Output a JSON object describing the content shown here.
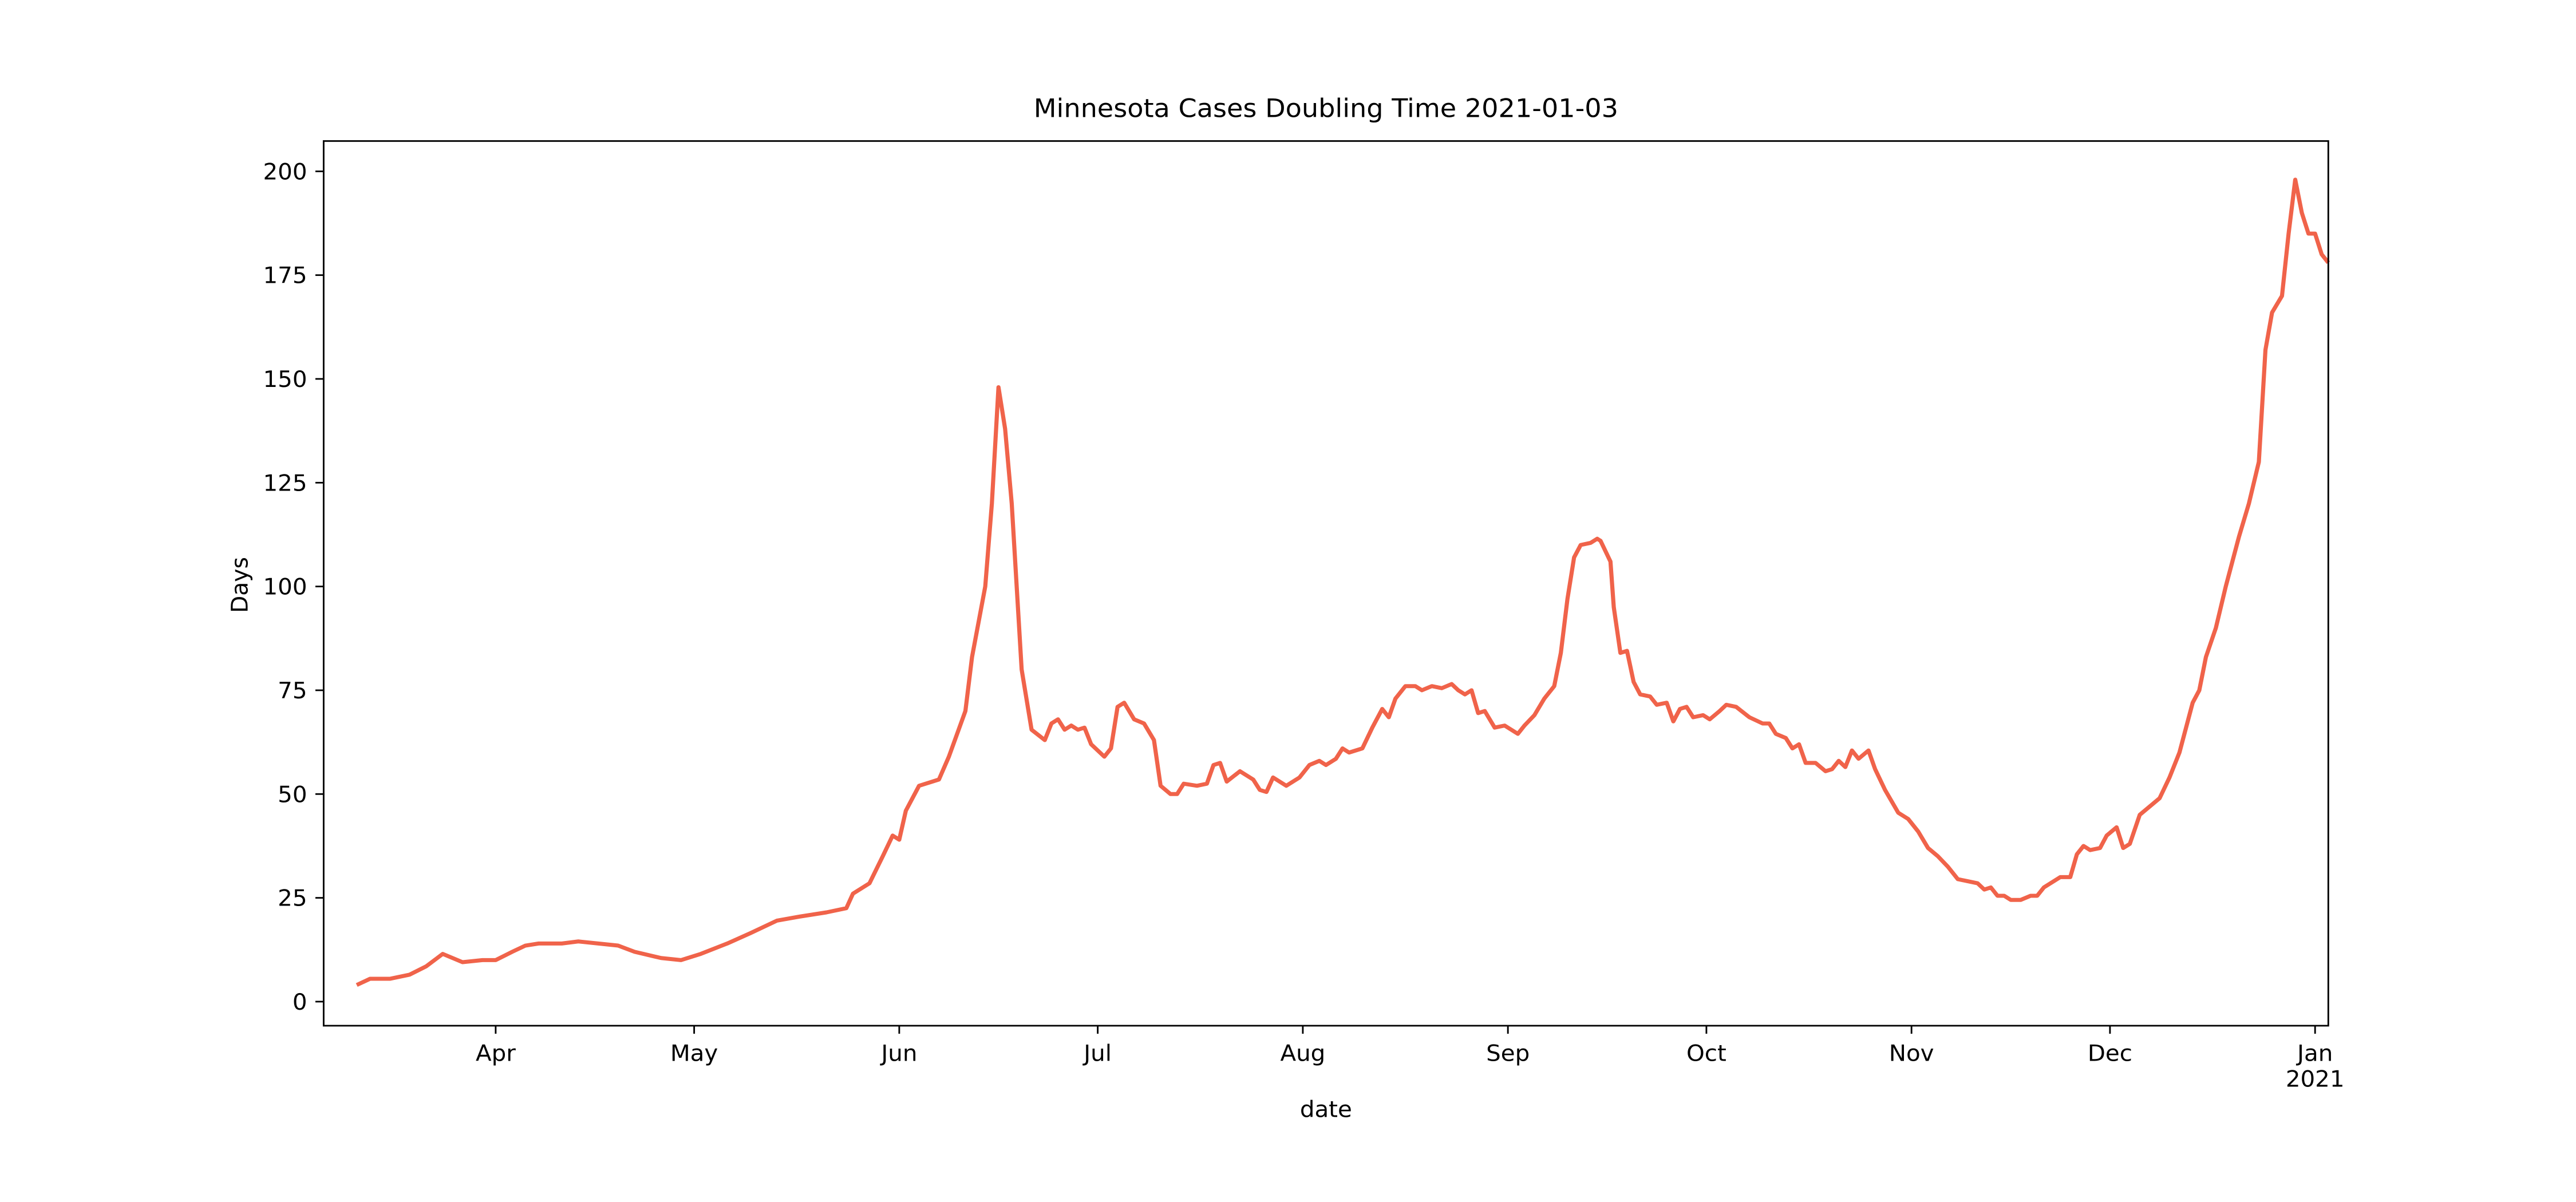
{
  "chart_data": {
    "type": "line",
    "title": "Minnesota Cases Doubling Time 2021-01-03",
    "xlabel": "date",
    "ylabel": "Days",
    "color": "#f0634a",
    "grid": false,
    "xlim": [
      0,
      303
    ],
    "ylim": [
      -5.8,
      207.3
    ],
    "xticks": [
      {
        "value": 26,
        "label": "Apr"
      },
      {
        "value": 56,
        "label": "May"
      },
      {
        "value": 87,
        "label": "Jun"
      },
      {
        "value": 117,
        "label": "Jul"
      },
      {
        "value": 148,
        "label": "Aug"
      },
      {
        "value": 179,
        "label": "Sep"
      },
      {
        "value": 209,
        "label": "Oct"
      },
      {
        "value": 240,
        "label": "Nov"
      },
      {
        "value": 270,
        "label": "Dec"
      },
      {
        "value": 301,
        "label": "Jan\n2021"
      }
    ],
    "yticks": [
      0,
      25,
      50,
      75,
      100,
      125,
      150,
      175,
      200
    ],
    "x": [
      5,
      7,
      10,
      13,
      15.5,
      18,
      21,
      24,
      26,
      28.5,
      30.5,
      32.5,
      36,
      38.5,
      41.5,
      44.5,
      47,
      51,
      54,
      57,
      61,
      64.5,
      68.5,
      72,
      76,
      79,
      80,
      82.5,
      84.5,
      86,
      87,
      88,
      90,
      93,
      94.5,
      97,
      98,
      100,
      101,
      102,
      103,
      104,
      105.5,
      107,
      109,
      110,
      111,
      112,
      113,
      114,
      115,
      116,
      118,
      119,
      120,
      121,
      122.5,
      124,
      125.5,
      126.5,
      128,
      129,
      130,
      132,
      133.5,
      134.5,
      135.5,
      136.5,
      138.5,
      140.5,
      141.5,
      142.5,
      143.5,
      145.5,
      147.5,
      149,
      150.5,
      151.5,
      153,
      154,
      155,
      157,
      158.5,
      160,
      161,
      162,
      163.5,
      165,
      166,
      167.5,
      169,
      170.5,
      171.5,
      172.5,
      173.5,
      174.5,
      175.5,
      177,
      178.5,
      179.5,
      180.5,
      181.5,
      183,
      184.5,
      186,
      187,
      188,
      189,
      190,
      191.5,
      192.5,
      193,
      194.5,
      195,
      196,
      197,
      198,
      199,
      200.5,
      201.5,
      203,
      204,
      205,
      206,
      207,
      208.5,
      209.5,
      211,
      212,
      213.5,
      215.5,
      217.5,
      218.5,
      219.5,
      221,
      222,
      223,
      224,
      225.5,
      227,
      228,
      229,
      230,
      231,
      232,
      233.5,
      234.5,
      236,
      238,
      239.5,
      241,
      242.5,
      244,
      245.5,
      247,
      248.5,
      250,
      251,
      252,
      253,
      254,
      255,
      256.5,
      258,
      259,
      260,
      261.5,
      262.5,
      264,
      265,
      266,
      267,
      268.5,
      269.5,
      271,
      272,
      273,
      274.5,
      276,
      277.5,
      279,
      280.5,
      281.5,
      282.5,
      283.5,
      284.5,
      286,
      287.5,
      288.5,
      289.5,
      291,
      292.5,
      293.5,
      294.5,
      296,
      297,
      298,
      299,
      300,
      301,
      302,
      303
    ],
    "values": [
      4,
      5.5,
      5.5,
      6.5,
      8.5,
      11.5,
      9.5,
      10,
      10,
      12,
      13.5,
      14,
      14,
      14.5,
      14,
      13.5,
      12,
      10.5,
      10,
      11.5,
      14,
      16.5,
      19.5,
      20.5,
      21.5,
      22.5,
      26,
      28.5,
      35,
      40,
      39,
      46,
      52,
      53.5,
      59,
      70,
      83,
      100,
      120,
      148,
      138,
      120,
      80,
      65.5,
      63,
      67,
      68,
      65.5,
      66.5,
      65.5,
      66,
      62,
      59,
      61,
      71,
      72,
      68,
      67,
      63,
      52,
      50,
      50,
      52.5,
      52,
      52.5,
      57,
      57.5,
      53,
      55.5,
      53.5,
      51,
      50.5,
      54,
      52,
      54,
      57,
      58,
      57,
      58.5,
      61,
      60,
      61,
      66,
      70.5,
      68.5,
      73,
      76,
      76,
      75,
      76,
      75.5,
      76.5,
      75,
      74,
      75,
      69.5,
      70,
      66,
      66.5,
      65.5,
      64.5,
      66.5,
      69,
      73,
      76,
      84,
      97,
      107,
      110,
      110.5,
      111.5,
      111,
      106,
      95,
      84,
      84.5,
      77,
      74,
      73.5,
      71.5,
      72,
      67.5,
      70.5,
      71,
      68.5,
      69,
      68,
      70,
      71.5,
      71,
      68.5,
      67,
      67,
      64.5,
      63.5,
      61,
      62,
      57.5,
      57.5,
      55.5,
      56,
      58,
      56.5,
      60.5,
      58.5,
      60.5,
      56,
      51,
      45.5,
      44,
      41,
      37,
      35,
      32.5,
      29.5,
      29,
      28.5,
      27,
      27.5,
      25.5,
      25.5,
      24.5,
      24.5,
      25.5,
      25.5,
      27.5,
      29,
      30,
      30,
      35.5,
      37.5,
      36.5,
      37,
      40,
      42,
      37,
      38,
      45,
      47,
      49,
      54,
      60,
      66,
      72,
      75,
      83,
      90,
      100,
      106,
      112,
      120,
      130,
      157,
      166,
      170,
      185,
      198,
      190,
      185,
      185,
      180,
      178
    ]
  }
}
